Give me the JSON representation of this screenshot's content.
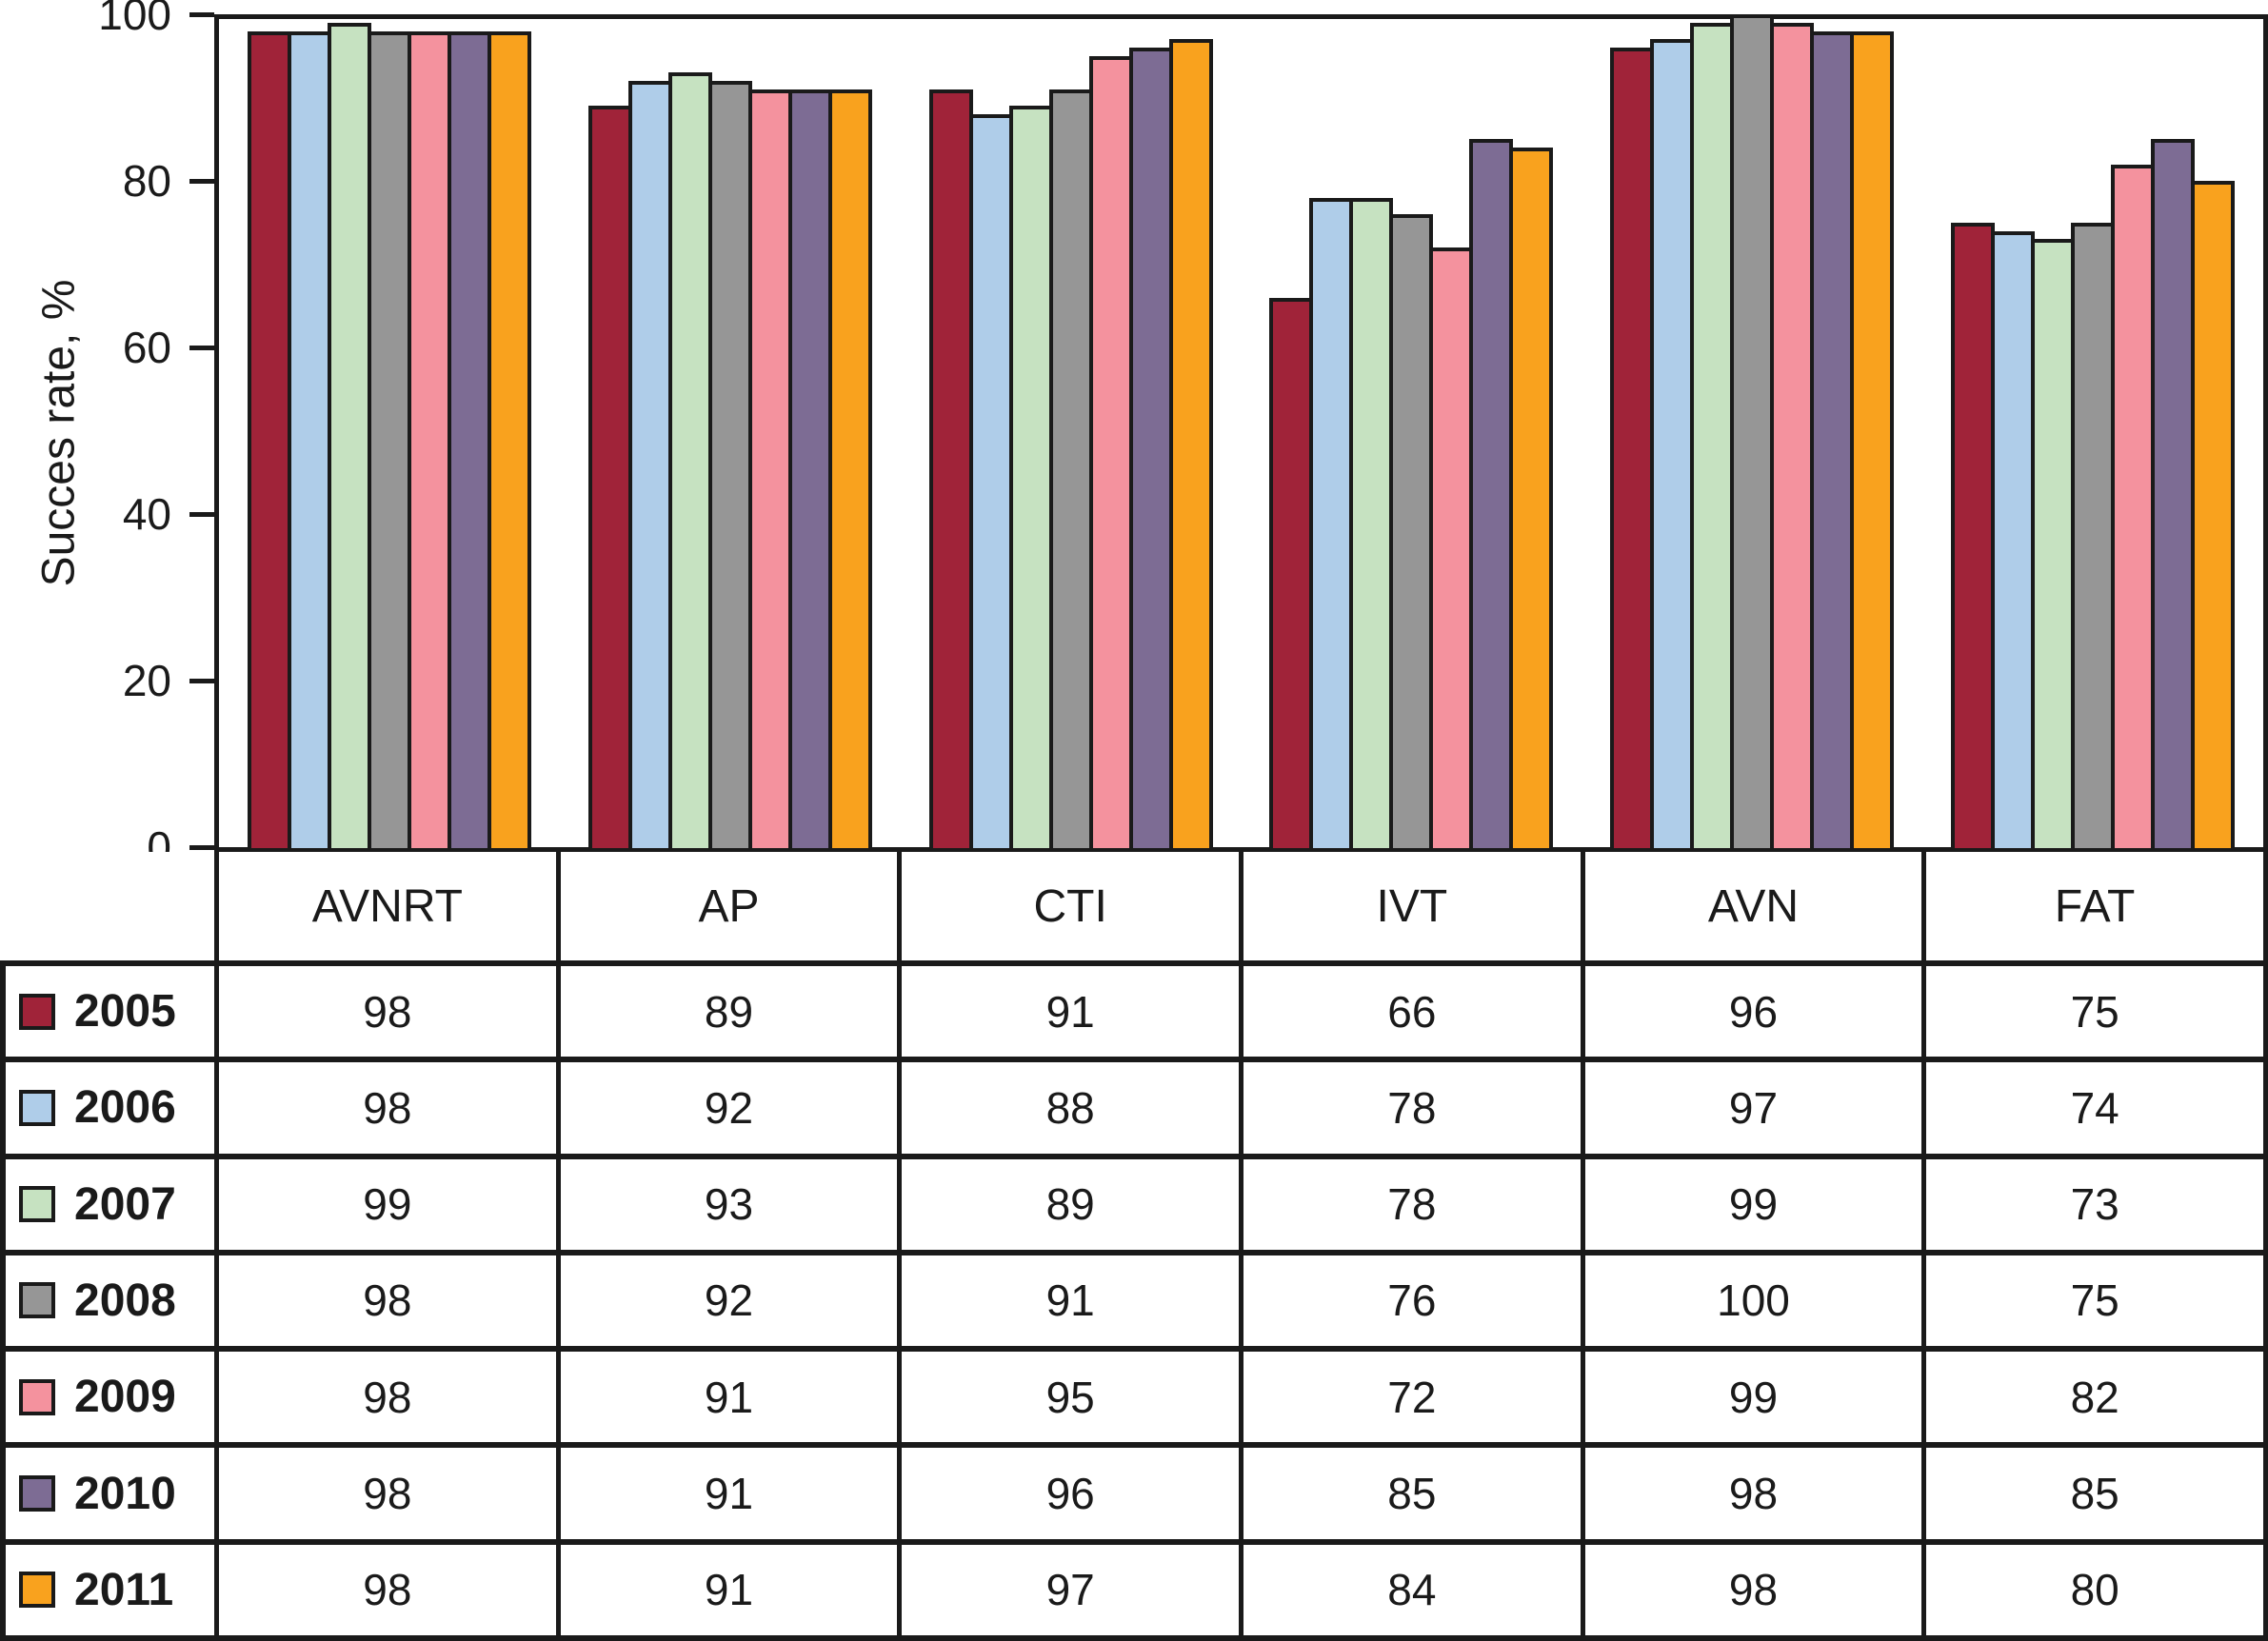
{
  "figure": {
    "background": "#ffffff",
    "line_color": "#1a1a1a"
  },
  "chart_data": {
    "type": "bar",
    "title": "",
    "xlabel": "",
    "ylabel": "Succes rate, %",
    "ylim": [
      0,
      100
    ],
    "yticks": [
      0,
      20,
      40,
      60,
      80,
      100
    ],
    "grid": false,
    "legend_position": "table-left-column",
    "categories": [
      "AVNRT",
      "AP",
      "CTI",
      "IVT",
      "AVN",
      "FAT"
    ],
    "series": [
      {
        "name": "2005",
        "color": "#A02339",
        "values": [
          98,
          89,
          91,
          66,
          96,
          75
        ]
      },
      {
        "name": "2006",
        "color": "#AFCDE9",
        "values": [
          98,
          92,
          88,
          78,
          97,
          74
        ]
      },
      {
        "name": "2007",
        "color": "#C6E2C1",
        "values": [
          99,
          93,
          89,
          78,
          99,
          73
        ]
      },
      {
        "name": "2008",
        "color": "#969696",
        "values": [
          98,
          92,
          91,
          76,
          100,
          75
        ]
      },
      {
        "name": "2009",
        "color": "#F4929E",
        "values": [
          98,
          91,
          95,
          72,
          99,
          82
        ]
      },
      {
        "name": "2010",
        "color": "#7D6C94",
        "values": [
          98,
          91,
          96,
          85,
          98,
          85
        ]
      },
      {
        "name": "2011",
        "color": "#F9A21E",
        "values": [
          98,
          91,
          97,
          84,
          98,
          80
        ]
      }
    ]
  }
}
